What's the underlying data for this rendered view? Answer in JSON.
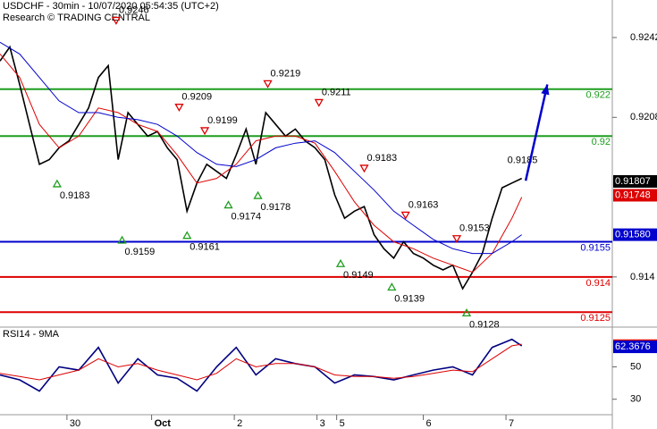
{
  "chart_data": [
    {
      "type": "line",
      "title": "USDCHF - 30min - 10/07/2020 05:54:35 (UTC+2)",
      "subtitle": "Research © TRADING CENTRAL",
      "xlim": [
        0,
        311
      ],
      "ylim": [
        0.9119,
        0.9258
      ],
      "xticks": [
        {
          "value": 34,
          "label": "30"
        },
        {
          "value": 77,
          "label": "Oct"
        },
        {
          "value": 119,
          "label": "2"
        },
        {
          "value": 161,
          "label": "3"
        },
        {
          "value": 171,
          "label": "5"
        },
        {
          "value": 215,
          "label": "6"
        },
        {
          "value": 257,
          "label": "7"
        }
      ],
      "yticks": [
        0.9242,
        0.9208,
        0.914
      ],
      "series": [
        {
          "color": "#000000",
          "x": [
            0,
            5,
            10,
            15,
            20,
            25,
            30,
            35,
            40,
            45,
            50,
            55,
            60,
            65,
            70,
            75,
            80,
            85,
            90,
            95,
            100,
            105,
            110,
            115,
            120,
            125,
            130,
            135,
            140,
            145,
            150,
            155,
            160,
            165,
            170,
            175,
            180,
            185,
            190,
            195,
            200,
            205,
            210,
            215,
            220,
            225,
            230,
            235,
            240,
            245,
            250,
            255,
            260,
            265
          ],
          "values": [
            0.9232,
            0.9238,
            0.9222,
            0.9205,
            0.9188,
            0.919,
            0.9195,
            0.9198,
            0.9205,
            0.9212,
            0.9225,
            0.923,
            0.919,
            0.921,
            0.9205,
            0.92,
            0.9202,
            0.9195,
            0.919,
            0.9168,
            0.918,
            0.9188,
            0.9185,
            0.9182,
            0.9192,
            0.9203,
            0.9188,
            0.921,
            0.9205,
            0.92,
            0.9203,
            0.9198,
            0.9195,
            0.919,
            0.9175,
            0.9165,
            0.9168,
            0.917,
            0.9158,
            0.9152,
            0.9148,
            0.9155,
            0.915,
            0.9148,
            0.9145,
            0.9143,
            0.9145,
            0.9135,
            0.9142,
            0.915,
            0.9165,
            0.9178,
            0.918,
            0.9182
          ]
        },
        {
          "color": "#dd0000",
          "x": [
            0,
            10,
            20,
            30,
            40,
            50,
            60,
            70,
            80,
            90,
            100,
            110,
            120,
            130,
            140,
            150,
            160,
            170,
            180,
            190,
            200,
            210,
            220,
            230,
            240,
            250,
            260,
            265
          ],
          "values": [
            0.9235,
            0.9225,
            0.9205,
            0.9195,
            0.92,
            0.9212,
            0.921,
            0.9205,
            0.9202,
            0.9192,
            0.918,
            0.9182,
            0.9188,
            0.9198,
            0.92,
            0.92,
            0.9197,
            0.9185,
            0.9172,
            0.9162,
            0.9155,
            0.9152,
            0.9148,
            0.9145,
            0.9142,
            0.915,
            0.9165,
            0.9174
          ]
        },
        {
          "color": "#0000cc",
          "x": [
            0,
            10,
            20,
            30,
            40,
            50,
            60,
            70,
            80,
            90,
            100,
            110,
            120,
            130,
            140,
            150,
            160,
            170,
            180,
            190,
            200,
            210,
            220,
            230,
            240,
            250,
            260,
            265
          ],
          "values": [
            0.924,
            0.9235,
            0.9225,
            0.9215,
            0.921,
            0.921,
            0.9208,
            0.9207,
            0.9205,
            0.92,
            0.9193,
            0.9188,
            0.9187,
            0.919,
            0.9195,
            0.9197,
            0.9198,
            0.9193,
            0.9185,
            0.9177,
            0.9168,
            0.9162,
            0.9156,
            0.9152,
            0.915,
            0.915,
            0.9155,
            0.9158
          ]
        }
      ],
      "levels": [
        {
          "value": 0.922,
          "color": "#1e9e1e"
        },
        {
          "value": 0.92,
          "color": "#1e9e1e"
        },
        {
          "value": 0.9155,
          "color": "#0000cc"
        },
        {
          "value": 0.914,
          "color": "#dd0000"
        },
        {
          "value": 0.9125,
          "color": "#dd0000"
        }
      ],
      "highs": {
        "color": "#dd0000",
        "x": [
          59,
          91,
          104,
          136,
          162,
          185,
          206,
          232
        ],
        "values": [
          0.9246,
          0.9209,
          0.9199,
          0.9219,
          0.9211,
          0.9183,
          0.9163,
          0.9153
        ]
      },
      "lows": {
        "color": "#1e9e1e",
        "x": [
          29,
          62,
          95,
          116,
          131,
          173,
          199,
          237
        ],
        "values": [
          0.9183,
          0.9159,
          0.9161,
          0.9174,
          0.9178,
          0.9149,
          0.9139,
          0.9128
        ]
      },
      "target": {
        "x": 265,
        "value": 0.9185
      },
      "projection": {
        "color": "#0000cc",
        "x": [
          267,
          278
        ],
        "values": [
          0.9181,
          0.9222
        ]
      },
      "last_values": [
        {
          "value": 0.91807,
          "label": "0.91807",
          "color": "#000000"
        },
        {
          "value": 0.91748,
          "label": "0.91748",
          "color": "#dd0000"
        },
        {
          "value": 0.9158,
          "label": "0.91580",
          "color": "#0000cc"
        }
      ]
    },
    {
      "type": "line",
      "title": "RSI14 - 9MA",
      "xlim": [
        0,
        311
      ],
      "ylim": [
        21,
        74
      ],
      "yticks": [
        30,
        50
      ],
      "series": [
        {
          "color": "#000080",
          "x": [
            0,
            10,
            20,
            30,
            40,
            50,
            60,
            70,
            80,
            90,
            100,
            110,
            120,
            130,
            140,
            150,
            160,
            170,
            180,
            190,
            200,
            210,
            220,
            230,
            240,
            250,
            260,
            265
          ],
          "values": [
            45,
            42,
            35,
            50,
            48,
            62,
            40,
            55,
            45,
            43,
            35,
            50,
            62,
            45,
            55,
            52,
            50,
            40,
            45,
            44,
            42,
            45,
            48,
            50,
            45,
            62,
            67,
            63
          ]
        },
        {
          "color": "#dd0000",
          "x": [
            0,
            10,
            20,
            30,
            40,
            50,
            60,
            70,
            80,
            90,
            100,
            110,
            120,
            130,
            140,
            150,
            160,
            170,
            180,
            190,
            200,
            210,
            220,
            230,
            240,
            250,
            260,
            265
          ],
          "values": [
            46,
            44,
            42,
            45,
            48,
            55,
            50,
            52,
            48,
            45,
            42,
            46,
            55,
            50,
            52,
            52,
            50,
            45,
            44,
            44,
            43,
            44,
            46,
            48,
            47,
            55,
            63,
            64
          ]
        }
      ],
      "last_values": [
        {
          "value": 63.1049,
          "color": "#dd0000"
        },
        {
          "value": 62.3676,
          "color": "#0000cc"
        }
      ]
    }
  ]
}
